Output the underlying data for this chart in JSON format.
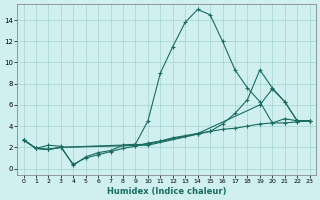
{
  "xlabel": "Humidex (Indice chaleur)",
  "background_color": "#cff0ee",
  "grid_color": "#aad8d4",
  "line_color": "#1a6b62",
  "xlim": [
    -0.5,
    23.5
  ],
  "ylim": [
    -0.6,
    15.5
  ],
  "yticks": [
    0,
    2,
    4,
    6,
    8,
    10,
    12,
    14
  ],
  "xticks": [
    0,
    1,
    2,
    3,
    4,
    5,
    6,
    7,
    8,
    9,
    10,
    11,
    12,
    13,
    14,
    15,
    16,
    17,
    18,
    19,
    20,
    21,
    22,
    23
  ],
  "lines": [
    {
      "x": [
        0,
        1,
        2,
        3,
        4,
        5,
        6,
        7,
        8,
        9,
        10,
        11,
        12,
        13,
        14,
        15,
        16,
        17,
        18,
        19,
        20,
        21,
        22,
        23
      ],
      "y": [
        2.7,
        1.9,
        2.2,
        2.1,
        0.3,
        1.1,
        1.5,
        1.7,
        2.2,
        2.3,
        4.5,
        9.0,
        11.5,
        13.8,
        15.0,
        14.5,
        12.0,
        9.3,
        7.6,
        6.3,
        4.3,
        4.7,
        4.5,
        4.5
      ]
    },
    {
      "x": [
        0,
        1,
        2,
        3,
        10,
        15,
        16,
        17,
        18,
        19,
        20,
        21,
        22,
        23
      ],
      "y": [
        2.7,
        1.9,
        1.8,
        2.0,
        2.2,
        3.5,
        4.2,
        5.2,
        6.5,
        9.3,
        7.6,
        6.3,
        4.5,
        4.5
      ]
    },
    {
      "x": [
        0,
        1,
        2,
        3,
        10,
        14,
        19,
        20,
        21,
        22,
        23
      ],
      "y": [
        2.7,
        1.9,
        1.8,
        2.0,
        2.3,
        3.3,
        6.0,
        7.5,
        6.3,
        4.5,
        4.5
      ]
    },
    {
      "x": [
        0,
        1,
        2,
        3,
        4,
        5,
        6,
        7,
        8,
        9,
        10,
        11,
        12,
        13,
        14,
        15,
        16,
        17,
        18,
        19,
        20,
        21,
        22,
        23
      ],
      "y": [
        2.7,
        1.9,
        1.8,
        2.0,
        0.4,
        1.0,
        1.3,
        1.6,
        1.9,
        2.1,
        2.4,
        2.6,
        2.9,
        3.1,
        3.3,
        3.5,
        3.7,
        3.8,
        4.0,
        4.2,
        4.3,
        4.3,
        4.4,
        4.5
      ]
    }
  ]
}
